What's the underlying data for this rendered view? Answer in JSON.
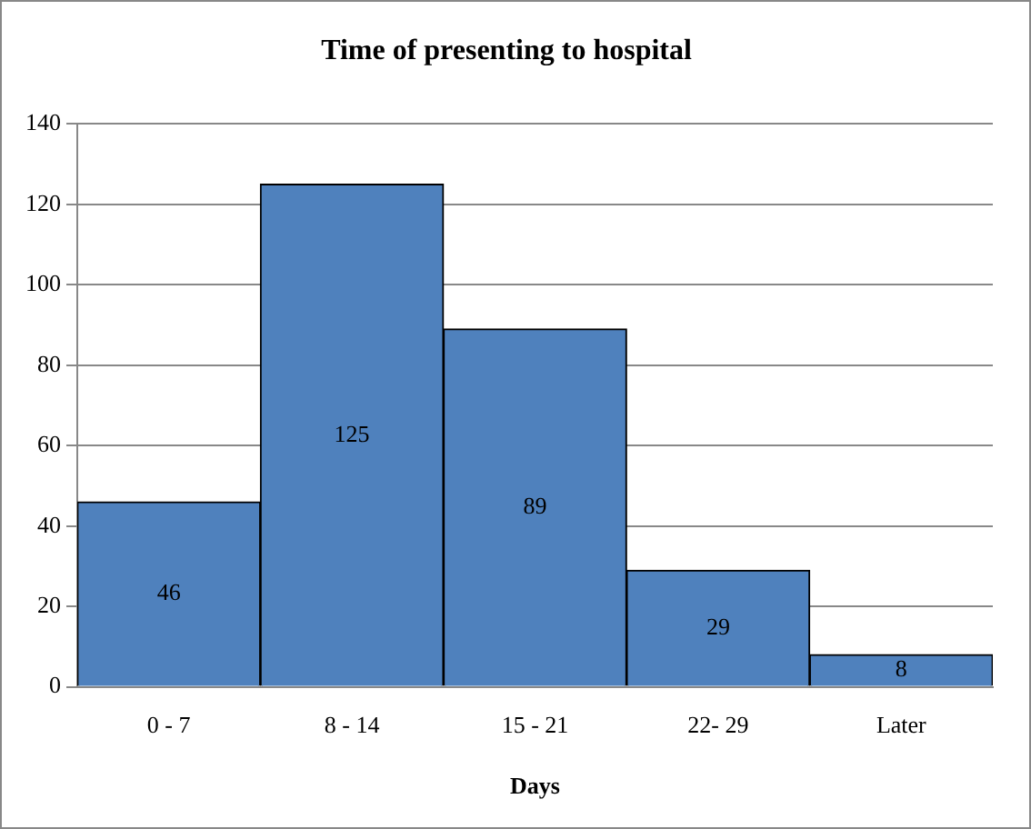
{
  "chart_data": {
    "type": "bar",
    "title": "Time of presenting to hospital",
    "xlabel": "Days",
    "categories": [
      "0 - 7",
      "8 - 14",
      "15 - 21",
      "22- 29",
      "Later"
    ],
    "values": [
      46,
      125,
      89,
      29,
      8
    ],
    "color": "#4f81bd",
    "ylim": [
      0,
      140
    ],
    "yticks": [
      0,
      20,
      40,
      60,
      80,
      100,
      120,
      140
    ],
    "grid": "y",
    "data_labels": true
  }
}
